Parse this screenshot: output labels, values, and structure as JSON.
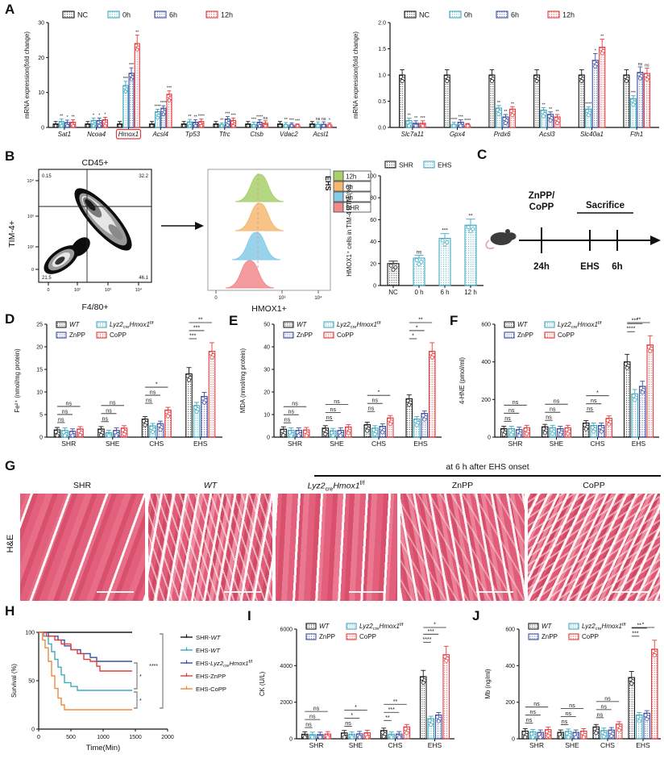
{
  "colors": {
    "black": "#1a1a1a",
    "teal": "#3fa9bf",
    "navy": "#3c4f9e",
    "red": "#e53a3e",
    "orange": "#ef8a3f",
    "hist_green": "#a8d06c",
    "hist_orange": "#f6b871",
    "hist_blue": "#86cbe9",
    "hist_red": "#f28a8c",
    "tissue_pink": "#e06078"
  },
  "panel_labels": {
    "A": "A",
    "B": "B",
    "C": "C",
    "D": "D",
    "E": "E",
    "F": "F",
    "G": "G",
    "H": "H",
    "I": "I",
    "J": "J"
  },
  "chart_data": [
    {
      "id": "A_left",
      "type": "grouped_bar",
      "ylabel": "mRNA expression(fold change)",
      "ylim": [
        0,
        30
      ],
      "yticks": [
        [
          0,
          "0"
        ],
        [
          10,
          "10"
        ],
        [
          20,
          "20"
        ],
        [
          30,
          "30"
        ]
      ],
      "categories": [
        "Sat1",
        "Ncoa4",
        "Hmox1",
        "Acsl4",
        "Tp53",
        "Tfrc",
        "Ctsb",
        "Vdac2",
        "Acsl1"
      ],
      "italic_categories": true,
      "highlight_category": "Hmox1",
      "series": [
        {
          "name": "NC",
          "color": "black",
          "values": [
            1,
            1,
            1,
            1,
            1,
            1,
            1,
            1,
            1
          ],
          "sig": [
            "",
            "",
            "",
            "",
            "",
            "",
            "",
            "",
            ""
          ]
        },
        {
          "name": "0h",
          "color": "teal",
          "values": [
            1.7,
            2.0,
            12,
            4.5,
            1.6,
            0.6,
            0.8,
            0.7,
            0.9
          ],
          "sig": [
            "**",
            "*",
            "***",
            "****",
            "**",
            "**",
            "***",
            "**",
            "ns"
          ]
        },
        {
          "name": "6h",
          "color": "navy",
          "values": [
            1.4,
            2.0,
            15.5,
            5.5,
            1.5,
            2.4,
            1.5,
            0.6,
            0.9
          ],
          "sig": [
            "*",
            "*",
            "***",
            "****",
            "**",
            "***",
            "****",
            "***",
            "ns"
          ]
        },
        {
          "name": "12h",
          "color": "red",
          "values": [
            1.5,
            2.2,
            24,
            9.5,
            1.7,
            2.0,
            1.2,
            0.3,
            0.6
          ],
          "sig": [
            "**",
            "*",
            "**",
            "***",
            "****",
            "***",
            "ns",
            "***",
            "*"
          ]
        }
      ]
    },
    {
      "id": "A_right",
      "type": "grouped_bar",
      "ylabel": "mRNA expression(fold change)",
      "ylim": [
        0,
        2
      ],
      "yticks": [
        [
          0,
          "0.0"
        ],
        [
          0.5,
          "0.5"
        ],
        [
          1,
          "1.0"
        ],
        [
          1.5,
          "1.5"
        ],
        [
          2,
          "2.0"
        ]
      ],
      "categories": [
        "Slc7a11",
        "Gpx4",
        "Prdx6",
        "Acsl3",
        "Slc40a1",
        "Fth1"
      ],
      "italic_categories": true,
      "series": [
        {
          "name": "NC",
          "color": "black",
          "values": [
            1,
            1,
            1,
            1,
            1,
            1
          ],
          "sig": [
            "",
            "",
            "",
            "",
            "",
            ""
          ]
        },
        {
          "name": "0h",
          "color": "teal",
          "values": [
            0.13,
            0.05,
            0.37,
            0.33,
            0.35,
            0.55
          ],
          "sig": [
            "**",
            "****",
            "**",
            "**",
            "****",
            "***"
          ]
        },
        {
          "name": "6h",
          "color": "navy",
          "values": [
            0.08,
            0.1,
            0.2,
            0.25,
            1.28,
            1.05
          ],
          "sig": [
            "**",
            "***",
            "**",
            "**",
            "*",
            "ns"
          ]
        },
        {
          "name": "12h",
          "color": "red",
          "values": [
            0.08,
            0.03,
            0.35,
            0.2,
            1.53,
            1.03
          ],
          "sig": [
            "***",
            "****",
            "**",
            "**",
            "**",
            "ns"
          ]
        }
      ]
    },
    {
      "id": "B_bar",
      "type": "simple_bar",
      "ylabel": "HMOX1⁺ cells in TIM-4 RTM (%)",
      "ylim": [
        0,
        100
      ],
      "yticks": [
        [
          0,
          "0"
        ],
        [
          20,
          "20"
        ],
        [
          40,
          "40"
        ],
        [
          60,
          "60"
        ],
        [
          80,
          "80"
        ],
        [
          100,
          "100"
        ]
      ],
      "categories": [
        "NC",
        "0 h",
        "6 h",
        "12 h"
      ],
      "values": [
        20,
        25,
        43,
        55
      ],
      "bar_colors": [
        "black",
        "teal",
        "teal",
        "teal"
      ],
      "sig": [
        "",
        "ns",
        "***",
        "**"
      ],
      "legend": [
        {
          "label": "SHR",
          "color": "black"
        },
        {
          "label": "EHS",
          "color": "teal"
        }
      ]
    },
    {
      "id": "D",
      "type": "grouped_bar",
      "ylabel": "Fe²⁺ (nmol/mg protein)",
      "ylim": [
        0,
        25
      ],
      "yticks": [
        [
          0,
          "0"
        ],
        [
          5,
          "5"
        ],
        [
          10,
          "10"
        ],
        [
          15,
          "15"
        ],
        [
          20,
          "20"
        ],
        [
          25,
          "25"
        ]
      ],
      "categories": [
        "SHR",
        "SHE",
        "CHS",
        "EHS"
      ],
      "series": [
        {
          "name": "WT",
          "color": "black",
          "values": [
            1.6,
            1.8,
            4.0,
            14
          ]
        },
        {
          "name": "Lyz2creHmox1f/f",
          "color": "teal",
          "values": [
            1.5,
            1.0,
            2.5,
            7
          ]
        },
        {
          "name": "ZnPP",
          "color": "navy",
          "values": [
            1.3,
            1.5,
            3.0,
            9
          ]
        },
        {
          "name": "CoPP",
          "color": "red",
          "values": [
            1.8,
            2.0,
            6.0,
            19
          ]
        }
      ],
      "group_sigs": [
        [
          "ns",
          "ns",
          "ns"
        ],
        [
          "ns",
          "ns",
          "ns"
        ],
        [
          "ns",
          "ns",
          "*"
        ],
        [
          "***",
          "***",
          "**"
        ]
      ]
    },
    {
      "id": "E",
      "type": "grouped_bar",
      "ylabel": "MDA (nmol/mg protein)",
      "ylim": [
        0,
        50
      ],
      "yticks": [
        [
          0,
          "0"
        ],
        [
          10,
          "10"
        ],
        [
          20,
          "20"
        ],
        [
          30,
          "30"
        ],
        [
          40,
          "40"
        ],
        [
          50,
          "50"
        ]
      ],
      "categories": [
        "SHR",
        "SHE",
        "CHS",
        "EHS"
      ],
      "series": [
        {
          "name": "WT",
          "color": "black",
          "values": [
            3.5,
            4.0,
            5.5,
            17
          ]
        },
        {
          "name": "Lyz2creHmox1f/f",
          "color": "teal",
          "values": [
            3.0,
            2.8,
            4.0,
            8
          ]
        },
        {
          "name": "ZnPP",
          "color": "navy",
          "values": [
            3.0,
            3.0,
            4.8,
            10.5
          ]
        },
        {
          "name": "CoPP",
          "color": "red",
          "values": [
            3.2,
            4.5,
            8.5,
            38
          ]
        }
      ],
      "group_sigs": [
        [
          "ns",
          "ns",
          "ns"
        ],
        [
          "ns",
          "ns",
          "ns"
        ],
        [
          "ns",
          "ns",
          "*"
        ],
        [
          "*",
          "*",
          "**"
        ]
      ]
    },
    {
      "id": "F",
      "type": "grouped_bar",
      "ylabel": "4-HNE (pmol/ml)",
      "ylim": [
        0,
        600
      ],
      "yticks": [
        [
          0,
          "0"
        ],
        [
          200,
          "200"
        ],
        [
          400,
          "400"
        ],
        [
          600,
          "600"
        ]
      ],
      "categories": [
        "SHR",
        "SHE",
        "CHS",
        "EHS"
      ],
      "series": [
        {
          "name": "WT",
          "color": "black",
          "values": [
            45,
            55,
            75,
            400
          ]
        },
        {
          "name": "Lyz2creHmox1f/f",
          "color": "teal",
          "values": [
            45,
            50,
            62,
            230
          ]
        },
        {
          "name": "ZnPP",
          "color": "navy",
          "values": [
            40,
            45,
            62,
            270
          ]
        },
        {
          "name": "CoPP",
          "color": "red",
          "values": [
            50,
            50,
            100,
            490
          ]
        }
      ],
      "group_sigs": [
        [
          "ns",
          "ns",
          "ns"
        ],
        [
          "ns",
          "ns",
          "ns"
        ],
        [
          "ns",
          "ns",
          "*"
        ],
        [
          "****",
          "***",
          "**"
        ]
      ]
    },
    {
      "id": "H",
      "type": "survival",
      "xlabel": "Time(Min)",
      "ylabel": "Survival (%)",
      "xlim": [
        0,
        2000
      ],
      "xticks": [
        [
          0,
          "0"
        ],
        [
          500,
          "500"
        ],
        [
          1000,
          "1000"
        ],
        [
          1500,
          "1500"
        ],
        [
          2000,
          "2000"
        ]
      ],
      "ylim": [
        0,
        100
      ],
      "yticks": [
        [
          0,
          "0"
        ],
        [
          50,
          "50"
        ],
        [
          100,
          "100"
        ]
      ],
      "series": [
        {
          "name": "SHR-WT",
          "color": "black",
          "points": [
            [
              0,
              100
            ],
            [
              1450,
              100
            ]
          ]
        },
        {
          "name": "EHS-WT",
          "color": "teal",
          "points": [
            [
              0,
              100
            ],
            [
              80,
              96
            ],
            [
              150,
              88
            ],
            [
              200,
              80
            ],
            [
              250,
              72
            ],
            [
              300,
              64
            ],
            [
              350,
              56
            ],
            [
              400,
              48
            ],
            [
              500,
              44
            ],
            [
              600,
              40
            ],
            [
              1450,
              40
            ]
          ]
        },
        {
          "name": "EHS-Lyz2creHmox1f/f",
          "color": "navy",
          "points": [
            [
              0,
              100
            ],
            [
              150,
              96
            ],
            [
              300,
              92
            ],
            [
              400,
              86
            ],
            [
              500,
              82
            ],
            [
              650,
              78
            ],
            [
              800,
              74
            ],
            [
              900,
              70
            ],
            [
              1450,
              70
            ]
          ]
        },
        {
          "name": "EHS-ZnPP",
          "color": "red",
          "points": [
            [
              0,
              100
            ],
            [
              120,
              96
            ],
            [
              250,
              92
            ],
            [
              350,
              88
            ],
            [
              500,
              82
            ],
            [
              600,
              78
            ],
            [
              700,
              72
            ],
            [
              800,
              70
            ],
            [
              900,
              65
            ],
            [
              950,
              60
            ],
            [
              1450,
              60
            ]
          ]
        },
        {
          "name": "EHS-CoPP",
          "color": "orange",
          "points": [
            [
              0,
              100
            ],
            [
              60,
              92
            ],
            [
              100,
              84
            ],
            [
              150,
              70
            ],
            [
              200,
              55
            ],
            [
              250,
              42
            ],
            [
              300,
              32
            ],
            [
              350,
              25
            ],
            [
              400,
              20
            ],
            [
              1450,
              20
            ]
          ]
        }
      ],
      "sig_brackets": [
        {
          "label": "*",
          "from": 70,
          "to": 40
        },
        {
          "label": "*",
          "from": 40,
          "to": 20
        },
        {
          "label": "****",
          "from": 100,
          "to": 20,
          "outer": true
        }
      ]
    },
    {
      "id": "I",
      "type": "grouped_bar",
      "ylabel": "CK (U/L)",
      "ylim": [
        0,
        6000
      ],
      "yticks": [
        [
          0,
          "0"
        ],
        [
          2000,
          "2000"
        ],
        [
          4000,
          "4000"
        ],
        [
          6000,
          "6000"
        ]
      ],
      "categories": [
        "SHR",
        "SHE",
        "CHS",
        "EHS"
      ],
      "series": [
        {
          "name": "WT",
          "color": "black",
          "values": [
            250,
            320,
            450,
            3400
          ]
        },
        {
          "name": "Lyz2creHmox1f/f",
          "color": "teal",
          "values": [
            230,
            250,
            250,
            1100
          ]
        },
        {
          "name": "ZnPP",
          "color": "navy",
          "values": [
            230,
            270,
            260,
            1300
          ]
        },
        {
          "name": "CoPP",
          "color": "red",
          "values": [
            260,
            330,
            650,
            4600
          ]
        }
      ],
      "group_sigs": [
        [
          "ns",
          "ns",
          "ns"
        ],
        [
          "ns",
          "*",
          "*"
        ],
        [
          "**",
          "***",
          "**"
        ],
        [
          "****",
          "***",
          "*"
        ]
      ]
    },
    {
      "id": "J",
      "type": "grouped_bar",
      "ylabel": "Mb (ng/ml)",
      "ylim": [
        0,
        600
      ],
      "yticks": [
        [
          0,
          "0"
        ],
        [
          200,
          "200"
        ],
        [
          400,
          "400"
        ],
        [
          600,
          "600"
        ]
      ],
      "categories": [
        "SHR",
        "SHE",
        "CHS",
        "EHS"
      ],
      "series": [
        {
          "name": "WT",
          "color": "black",
          "values": [
            42,
            35,
            65,
            335
          ]
        },
        {
          "name": "Lyz2creHmox1f/f",
          "color": "teal",
          "values": [
            38,
            40,
            45,
            130
          ]
        },
        {
          "name": "ZnPP",
          "color": "navy",
          "values": [
            35,
            35,
            48,
            140
          ]
        },
        {
          "name": "CoPP",
          "color": "red",
          "values": [
            50,
            42,
            80,
            490
          ]
        }
      ],
      "group_sigs": [
        [
          "ns",
          "ns",
          "ns"
        ],
        [
          "ns",
          "ns",
          "ns"
        ],
        [
          "ns",
          "ns",
          "ns"
        ],
        [
          "***",
          "**",
          "*"
        ]
      ]
    }
  ],
  "panels": {
    "B": {
      "flow": {
        "title": "CD45+",
        "xlabel": "F4/80+",
        "ylabel": "TIM-4+",
        "quadrants": {
          "top_left": "0.15",
          "top_right": "32.2",
          "bottom_left": "21.5",
          "bottom_right": "46.1"
        },
        "xticks": [
          "0",
          "10²",
          "10³",
          "10⁴"
        ],
        "yticks": [
          "10⁴",
          "10³",
          "10²",
          "0"
        ]
      },
      "histogram": {
        "xlabel": "HMOX1+",
        "tag": "EHS",
        "xticks": [
          "0",
          "10³",
          "10⁴"
        ],
        "legend": [
          {
            "label": "12h",
            "color": "hist_green"
          },
          {
            "label": "6h",
            "color": "hist_orange"
          },
          {
            "label": "0h",
            "color": "hist_blue"
          },
          {
            "label": "SHR",
            "color": "hist_red"
          }
        ]
      }
    },
    "C": {
      "treatment_line1": "ZnPP/",
      "treatment_line2": "CoPP",
      "sacrifice": "Sacrifice",
      "t1": "24h",
      "t2": "EHS",
      "t3": "6h"
    },
    "G": {
      "header": "at 6 h after EHS onset",
      "row_label": "H&E",
      "columns": [
        "SHR",
        "WT",
        "Lyz2creHmox1f/f",
        "ZnPP",
        "CoPP"
      ]
    }
  }
}
